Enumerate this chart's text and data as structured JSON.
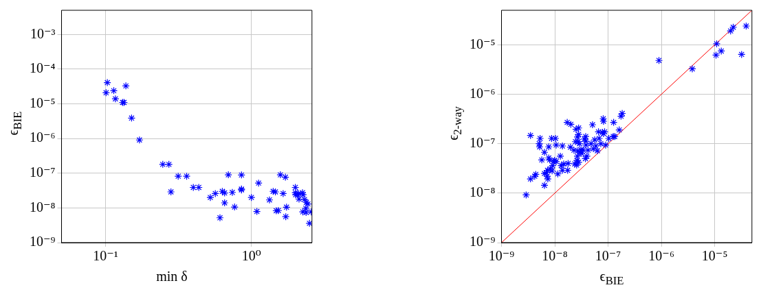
{
  "chart_data": [
    {
      "type": "scatter",
      "xlabel": "min δ",
      "ylabel": "ϵ$_{BIE}$",
      "log": "xy",
      "grid": true,
      "marker": "cross",
      "xlim": [
        0.05,
        2.6
      ],
      "ylim": [
        1e-09,
        0.005
      ],
      "xticks": [
        {
          "value": 0.1,
          "label": "10⁻¹"
        },
        {
          "value": 1,
          "label": "10⁰"
        }
      ],
      "yticks": [
        {
          "value": 1e-09,
          "label": "10⁻⁹"
        },
        {
          "value": 1e-08,
          "label": "10⁻⁸"
        },
        {
          "value": 1e-07,
          "label": "10⁻⁷"
        },
        {
          "value": 1e-06,
          "label": "10⁻⁶"
        },
        {
          "value": 1e-05,
          "label": "10⁻⁵"
        },
        {
          "value": 0.0001,
          "label": "10⁻⁴"
        },
        {
          "value": 0.001,
          "label": "10⁻³"
        }
      ],
      "series": [
        {
          "type": "scatter",
          "color": "#0000ff",
          "x": [
            0.103,
            0.101,
            0.114,
            0.117,
            0.131,
            0.134,
            0.138,
            0.151,
            0.171,
            0.247,
            0.272,
            0.281,
            0.315,
            0.36,
            0.4,
            0.436,
            0.523,
            0.566,
            0.609,
            0.632,
            0.655,
            0.655,
            0.695,
            0.74,
            0.767,
            0.855,
            0.855,
            0.855,
            1.0,
            1.09,
            1.12,
            1.33,
            1.41,
            1.46,
            1.48,
            1.53,
            1.58,
            1.65,
            1.71,
            1.74,
            1.72,
            2.0,
            2.0,
            2.01,
            2.08,
            2.12,
            2.24,
            2.26,
            2.31,
            2.25,
            2.36,
            2.38,
            2.44,
            2.37,
            2.5,
            2.57,
            2.1
          ],
          "values": [
            4.1e-05,
            2.1e-05,
            2.4e-05,
            1.4e-05,
            1.1e-05,
            1.1e-05,
            3.3e-05,
            3.9e-06,
            9.1e-07,
            1.8e-07,
            1.8e-07,
            2.9e-08,
            8.2e-08,
            8.2e-08,
            3.9e-08,
            3.9e-08,
            2e-08,
            2.6e-08,
            5.2e-09,
            3e-08,
            2.7e-08,
            1.4e-08,
            9e-08,
            2.8e-08,
            1.06e-08,
            8.9e-08,
            3.5e-08,
            3.3e-08,
            2e-08,
            7.9e-09,
            5.2e-08,
            1.7e-08,
            3e-08,
            2.9e-08,
            8.3e-09,
            8.4e-09,
            9e-08,
            2.6e-08,
            7.7e-08,
            1.05e-08,
            5.6e-09,
            3.9e-08,
            2.75e-08,
            2.4e-08,
            2.4e-08,
            1.8e-08,
            2.75e-08,
            2.4e-08,
            1.75e-08,
            7.7e-09,
            9.8e-09,
            1.45e-08,
            1.3e-08,
            7.4e-09,
            3.6e-09,
            7.7e-09,
            2.6e-08
          ]
        }
      ]
    },
    {
      "type": "scatter",
      "xlabel": "ϵ$_{BIE}$",
      "ylabel": "ϵ$_{2-way}$",
      "log": "xy",
      "grid": true,
      "xlim": [
        1e-09,
        5e-05
      ],
      "ylim": [
        1e-09,
        5e-05
      ],
      "xticks": [
        {
          "value": 1e-09,
          "label": "10⁻⁹"
        },
        {
          "value": 1e-08,
          "label": "10⁻⁸"
        },
        {
          "value": 1e-07,
          "label": "10⁻⁷"
        },
        {
          "value": 1e-06,
          "label": "10⁻⁶"
        },
        {
          "value": 1e-05,
          "label": "10⁻⁵"
        }
      ],
      "yticks": [
        {
          "value": 1e-09,
          "label": "10⁻⁹"
        },
        {
          "value": 1e-08,
          "label": "10⁻⁸"
        },
        {
          "value": 1e-07,
          "label": "10⁻⁷"
        },
        {
          "value": 1e-06,
          "label": "10⁻⁶"
        },
        {
          "value": 1e-05,
          "label": "10⁻⁵"
        }
      ],
      "series": [
        {
          "type": "line",
          "marker": "none",
          "color": "#ff0000",
          "x": [
            1e-09,
            5e-05
          ],
          "values": [
            1e-09,
            5e-05
          ]
        },
        {
          "type": "scatter",
          "marker": "cross",
          "color": "#0000ff",
          "x": [
            2.9e-09,
            3.5e-09,
            3.5e-09,
            4.2e-09,
            4.4e-09,
            5.1e-09,
            5.2e-09,
            5.3e-09,
            5.7e-09,
            6.4e-09,
            6.4e-09,
            6.4e-09,
            6.9e-09,
            7.3e-09,
            7.2e-09,
            7.4e-09,
            7.7e-09,
            7.7e-09,
            8e-09,
            8.2e-09,
            8.7e-09,
            8.9e-09,
            9.1e-09,
            9.5e-09,
            9.9e-09,
            1.03e-08,
            1.06e-08,
            1.06e-08,
            1.14e-08,
            1.27e-08,
            1.32e-08,
            1.39e-08,
            1.39e-08,
            1.47e-08,
            1.71e-08,
            1.74e-08,
            1.78e-08,
            1.97e-08,
            2e-08,
            2.29e-08,
            2.37e-08,
            2.44e-08,
            2.5e-08,
            2.57e-08,
            2.6e-08,
            2.66e-08,
            2.66e-08,
            2.7e-08,
            2.75e-08,
            2.8e-08,
            2.8e-08,
            2.8e-08,
            2.9e-08,
            3e-08,
            3.1e-08,
            3.2e-08,
            3.4e-08,
            3.6e-08,
            3.8e-08,
            3.85e-08,
            3.85e-08,
            3.75e-08,
            4e-08,
            4.2e-08,
            4.8e-08,
            5.1e-08,
            5.3e-08,
            5.6e-08,
            5.9e-08,
            6.3e-08,
            6.6e-08,
            6.8e-08,
            7.3e-08,
            7.8e-08,
            8.1e-08,
            8.2e-08,
            8.2e-08,
            8.6e-08,
            9e-08,
            1.03e-07,
            1.25e-07,
            1.27e-07,
            1.33e-07,
            1.62e-07,
            1.75e-07,
            1.84e-07,
            9e-07,
            3.8e-06,
            1.06e-05,
            1.09e-05,
            1.33e-05,
            1.99e-05,
            2.23e-05,
            3.2e-05,
            3.9e-05
          ],
          "values": [
            9.2e-09,
            1.47e-07,
            1.94e-08,
            2.2e-08,
            2.4e-08,
            1e-07,
            8.65e-08,
            1.28e-07,
            4.7e-08,
            6.7e-08,
            1.44e-08,
            2.5e-08,
            2.6e-08,
            2.9e-08,
            2.2e-08,
            1.94e-08,
            8.65e-08,
            5.15e-08,
            4.7e-08,
            3.1e-08,
            1.28e-07,
            2.83e-08,
            3.6e-08,
            4.35e-08,
            4.6e-08,
            1.28e-07,
            9.4e-08,
            4.35e-08,
            2.46e-08,
            5.6e-08,
            3.6e-08,
            9e-08,
            2.9e-08,
            3.9e-08,
            2.7e-07,
            2.9e-08,
            4e-08,
            8.5e-08,
            2.47e-07,
            7.4e-08,
            3.9e-08,
            1.1e-07,
            1.96e-07,
            3.7e-08,
            4.6e-08,
            1.37e-07,
            5.6e-08,
            7.2e-08,
            1.1e-07,
            1.54e-07,
            2.08e-07,
            4.2e-08,
            1e-07,
            6.7e-08,
            7.5e-08,
            6.4e-08,
            7.5e-08,
            1.24e-07,
            1.4e-07,
            1.12e-07,
            9.4e-08,
            5e-08,
            5.6e-08,
            7.4e-08,
            1e-07,
            2.42e-07,
            7.9e-08,
            1.2e-07,
            9e-08,
            7.2e-08,
            1.74e-07,
            1.28e-07,
            1e-07,
            1.7e-07,
            3.2e-07,
            2.84e-07,
            1.6e-07,
            1.74e-07,
            9.4e-08,
            1.28e-07,
            1.4e-07,
            2.7e-07,
            1.4e-07,
            1.9e-07,
            3.6e-07,
            4.1e-07,
            4.83e-06,
            3.27e-06,
            6.2e-06,
            1.05e-05,
            7.5e-06,
            1.91e-05,
            2.27e-05,
            6.4e-06,
            2.4e-05
          ]
        }
      ]
    }
  ]
}
